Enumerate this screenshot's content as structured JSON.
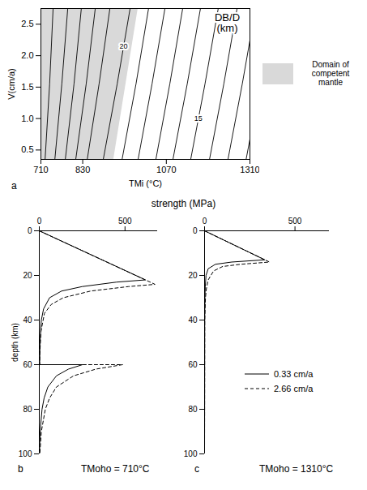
{
  "chart_data": [
    {
      "type": "line",
      "panel_label": "a",
      "title": "DB/D\n(km)",
      "x_label": "TMi (°C)",
      "y_label": "V(cm/a)",
      "xlim": [
        710,
        1310
      ],
      "xticks": [
        710,
        830,
        1070,
        1310
      ],
      "ylim": [
        0.35,
        2.75
      ],
      "yticks": [
        0.5,
        {
          "value": 1,
          "label": "1.0"
        },
        1.5,
        {
          "value": 2,
          "label": "2.0"
        },
        2.5
      ],
      "color": "#000000",
      "contours": [
        {
          "x": [
            722,
            735,
            745
          ],
          "y": [
            0.35,
            1.55,
            2.75
          ]
        },
        {
          "x": [
            750,
            770,
            787
          ],
          "y": [
            0.35,
            1.55,
            2.75
          ]
        },
        {
          "x": [
            780,
            805,
            826
          ],
          "y": [
            0.35,
            1.55,
            2.75
          ]
        },
        {
          "x": [
            810,
            840,
            866
          ],
          "y": [
            0.35,
            1.55,
            2.75
          ]
        },
        {
          "x": [
            843,
            877,
            908
          ],
          "y": [
            0.35,
            1.55,
            2.75
          ]
        },
        {
          "x": [
            889,
            929,
            966
          ],
          "y": [
            0.35,
            1.55,
            2.75
          ]
        },
        {
          "x": [
            943,
            983,
            1019
          ],
          "y": [
            0.35,
            1.55,
            2.75
          ]
        },
        {
          "x": [
            989,
            1029,
            1066
          ],
          "y": [
            0.35,
            1.55,
            2.75
          ]
        },
        {
          "x": [
            1040,
            1080,
            1117
          ],
          "y": [
            0.35,
            1.55,
            2.75
          ]
        },
        {
          "x": [
            1089,
            1130,
            1168
          ],
          "y": [
            0.35,
            1.55,
            2.75
          ]
        },
        {
          "x": [
            1140,
            1181,
            1219
          ],
          "y": [
            0.35,
            1.55,
            2.75
          ]
        },
        {
          "x": [
            1194,
            1235,
            1273
          ],
          "y": [
            0.35,
            1.55,
            2.75
          ]
        },
        {
          "x": [
            1247,
            1288,
            1326
          ],
          "y": [
            0.35,
            1.55,
            2.75
          ]
        },
        {
          "x": [
            1299,
            1340,
            1378
          ],
          "y": [
            0.35,
            1.55,
            2.75
          ]
        }
      ],
      "annotations": [
        {
          "text": "20",
          "x": 947,
          "y": 2.15
        },
        {
          "text": "15",
          "x": 1162,
          "y": 1.0
        }
      ],
      "area": {
        "name": "Domain of competent mantle",
        "color": "#d9d9d9",
        "x": [
          919,
          989
        ],
        "y": [
          0.35,
          2.75
        ]
      }
    },
    {
      "type": "line",
      "panel_label": "b",
      "title": "TMoho = 710°C",
      "x_label": "strength (MPa)",
      "y_label": "depth (km)",
      "xlim": [
        0,
        690
      ],
      "xticks": [
        0,
        500
      ],
      "ylim": [
        0,
        100
      ],
      "yticks": [
        0,
        20,
        40,
        60,
        80,
        100
      ],
      "series": [
        {
          "name": "0.33 cm/a",
          "color": "#000000",
          "line_style": "solid",
          "x": [
            0,
            619,
            450,
            250,
            130,
            60,
            25,
            12,
            4,
            2,
            252,
            170,
            100,
            50,
            28,
            16,
            5,
            1
          ],
          "y": [
            0,
            22,
            23,
            25,
            27,
            30,
            35,
            40,
            50,
            60,
            60,
            62,
            65,
            70,
            75,
            80,
            90,
            100
          ]
        },
        {
          "name": "2.66 cm/a",
          "color": "#000000",
          "line_style": "dashed",
          "x": [
            0,
            675,
            520,
            300,
            140,
            70,
            30,
            10,
            3,
            2,
            486,
            330,
            200,
            100,
            60,
            35,
            12,
            3
          ],
          "y": [
            0,
            24,
            25,
            27,
            30,
            33,
            37,
            45,
            55,
            60,
            60,
            62,
            65,
            70,
            75,
            80,
            90,
            100
          ]
        }
      ]
    },
    {
      "type": "line",
      "panel_label": "c",
      "title": "TMoho = 1310°C",
      "xlim": [
        0,
        690
      ],
      "xticks": [
        0,
        500
      ],
      "ylim": [
        0,
        100
      ],
      "yticks": [
        0,
        20,
        40,
        60,
        80,
        100
      ],
      "legend": "right",
      "series": [
        {
          "name": "0.33 cm/a",
          "color": "#000000",
          "line_style": "solid",
          "x": [
            0,
            333,
            150,
            60,
            20,
            8,
            4,
            2,
            1,
            0
          ],
          "y": [
            0,
            13,
            14,
            15,
            17,
            20,
            25,
            30,
            40,
            100
          ]
        },
        {
          "name": "2.66 cm/a",
          "color": "#000000",
          "line_style": "dashed",
          "x": [
            0,
            359,
            200,
            100,
            50,
            20,
            10,
            5,
            1,
            0
          ],
          "y": [
            0,
            14,
            15,
            16,
            18,
            22,
            26,
            30,
            40,
            100
          ]
        }
      ]
    }
  ]
}
